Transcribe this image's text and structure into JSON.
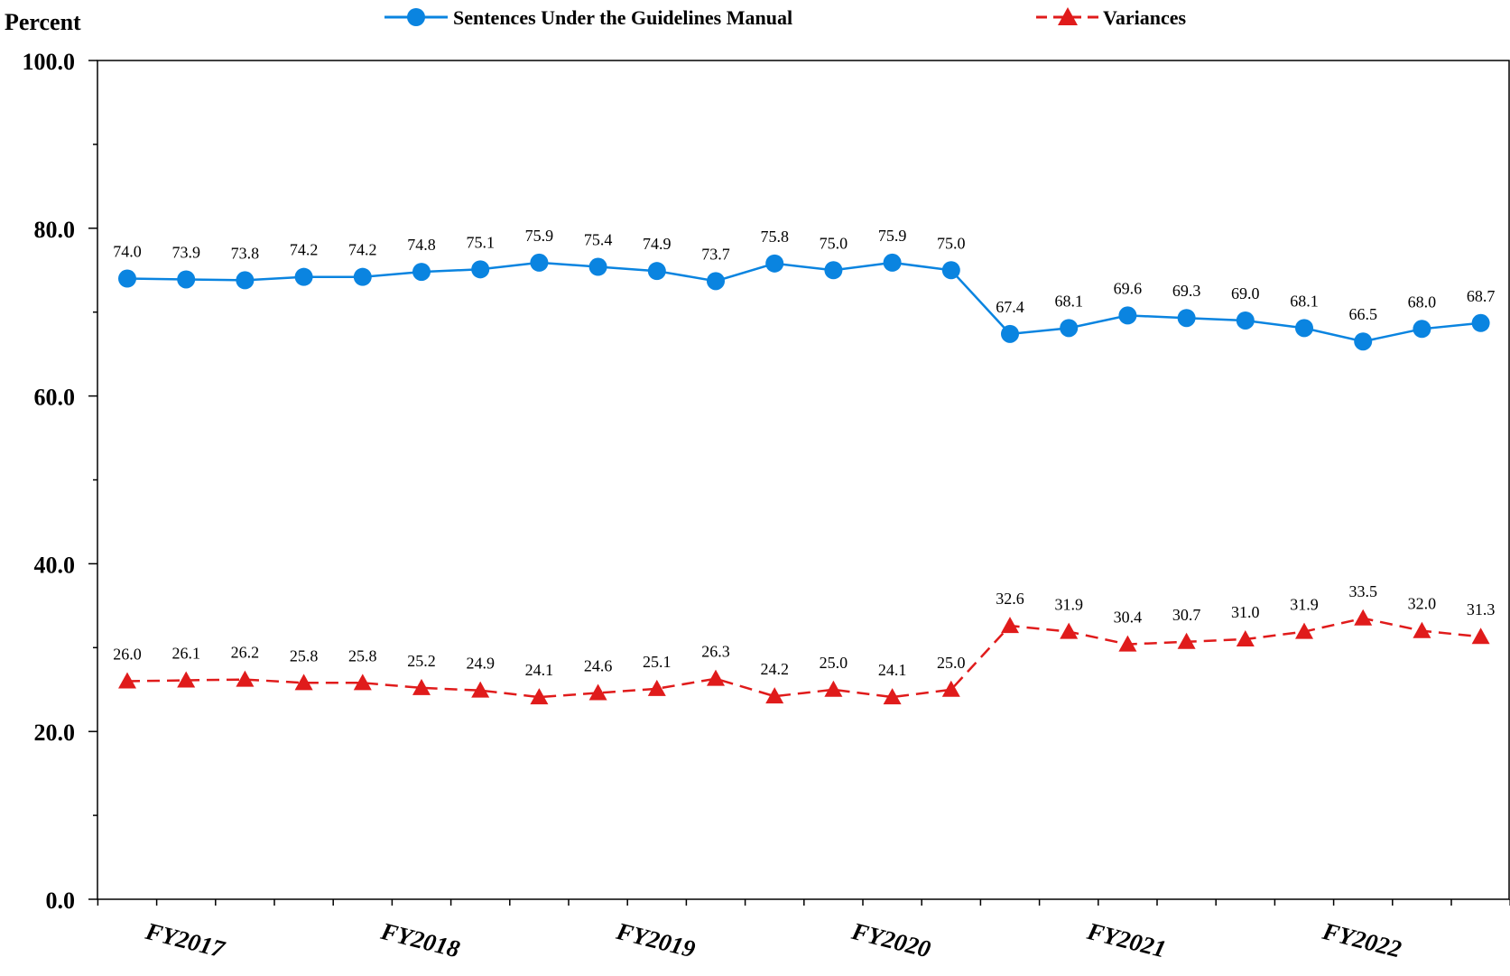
{
  "chart_data": {
    "type": "line",
    "ylabel": "Percent",
    "ylim": [
      0,
      100
    ],
    "y_ticks": [
      "0.0",
      "20.0",
      "40.0",
      "60.0",
      "80.0",
      "100.0"
    ],
    "x_tick_labels": [
      "FY2017",
      "FY2018",
      "FY2019",
      "FY2020",
      "FY2021",
      "FY2022"
    ],
    "grid": false,
    "legend_position": "top",
    "series": [
      {
        "name": "Sentences Under the Guidelines Manual",
        "color": "#0A84E0",
        "marker": "circle",
        "line_style": "solid",
        "values": [
          74.0,
          73.9,
          73.8,
          74.2,
          74.2,
          74.8,
          75.1,
          75.9,
          75.4,
          74.9,
          73.7,
          75.8,
          75.0,
          75.9,
          75.0,
          67.4,
          68.1,
          69.6,
          69.3,
          69.0,
          68.1,
          66.5,
          68.0,
          68.7
        ],
        "labels": [
          "74.0",
          "73.9",
          "73.8",
          "74.2",
          "74.2",
          "74.8",
          "75.1",
          "75.9",
          "75.4",
          "74.9",
          "73.7",
          "75.8",
          "75.0",
          "75.9",
          "75.0",
          "67.4",
          "68.1",
          "69.6",
          "69.3",
          "69.0",
          "68.1",
          "66.5",
          "68.0",
          "68.7"
        ]
      },
      {
        "name": "Variances",
        "color": "#E01B1B",
        "marker": "triangle",
        "line_style": "dashed",
        "values": [
          26.0,
          26.1,
          26.2,
          25.8,
          25.8,
          25.2,
          24.9,
          24.1,
          24.6,
          25.1,
          26.3,
          24.2,
          25.0,
          24.1,
          25.0,
          32.6,
          31.9,
          30.4,
          30.7,
          31.0,
          31.9,
          33.5,
          32.0,
          31.3
        ],
        "labels": [
          "26.0",
          "26.1",
          "26.2",
          "25.8",
          "25.8",
          "25.2",
          "24.9",
          "24.1",
          "24.6",
          "25.1",
          "26.3",
          "24.2",
          "25.0",
          "24.1",
          "25.0",
          "32.6",
          "31.9",
          "30.4",
          "30.7",
          "31.0",
          "31.9",
          "33.5",
          "32.0",
          "31.3"
        ]
      }
    ]
  }
}
